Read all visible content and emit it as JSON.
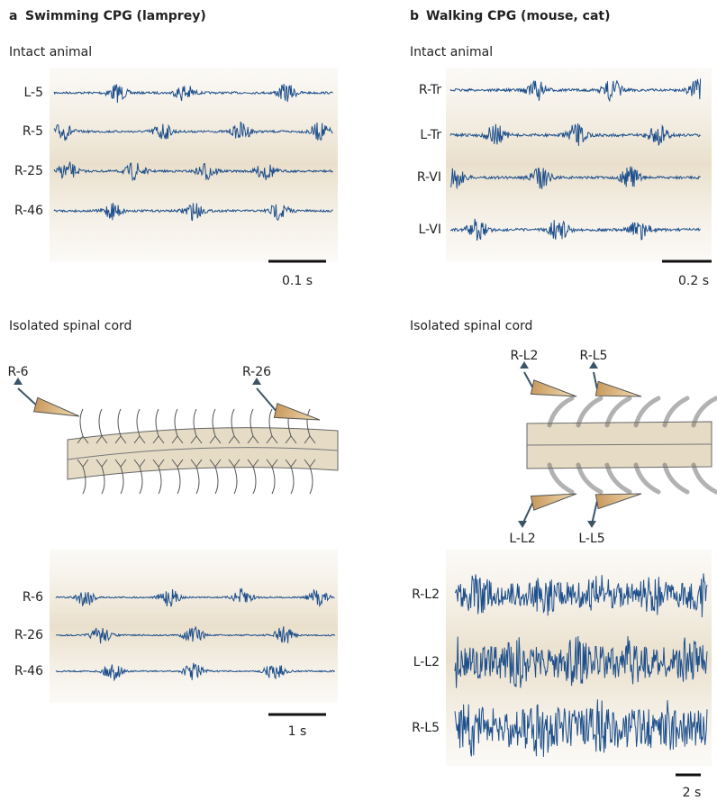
{
  "panels": [
    {
      "letter": "a",
      "title": "Swimming CPG (lamprey)",
      "intact_label": "Intact animal",
      "intact_traces": [
        "L-5",
        "R-5",
        "R-25",
        "R-46"
      ],
      "intact_scale": "0.1 s",
      "isolated_label": "Isolated spinal cord",
      "electrodes": [
        "R-6",
        "R-26"
      ],
      "isolated_traces": [
        "R-6",
        "R-26",
        "R-46"
      ],
      "isolated_scale": "1 s"
    },
    {
      "letter": "b",
      "title": "Walking CPG (mouse, cat)",
      "intact_label": "Intact animal",
      "intact_traces": [
        "R-Tr",
        "L-Tr",
        "R-VI",
        "L-VI"
      ],
      "intact_scale": "0.2 s",
      "isolated_label": "Isolated spinal cord",
      "electrodes": [
        "R-L2",
        "R-L5",
        "L-L2",
        "L-L5"
      ],
      "isolated_traces": [
        "R-L2",
        "L-L2",
        "R-L5"
      ],
      "isolated_scale": "2 s"
    }
  ]
}
